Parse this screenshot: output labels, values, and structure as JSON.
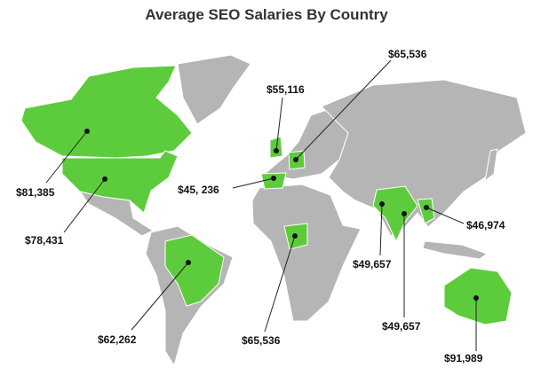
{
  "title": "Average SEO Salaries By Country",
  "labels": [
    "$81,385",
    "$78,431",
    "$55,116",
    "$65,536",
    "$45, 236",
    "$49,657",
    "$49,657",
    "$46,974",
    "$62,262",
    "$65,536",
    "$91,989"
  ]
}
